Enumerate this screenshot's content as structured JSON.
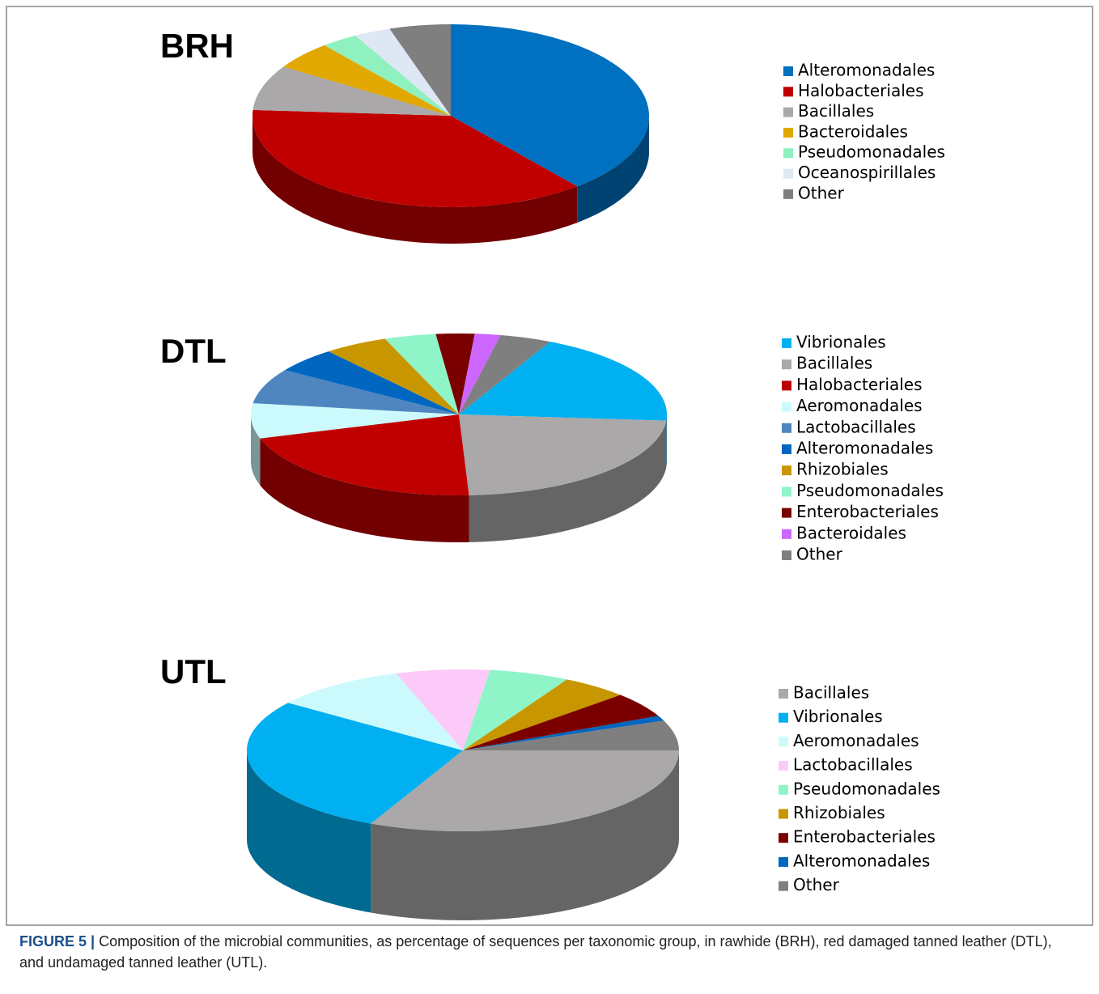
{
  "chart_data": [
    {
      "type": "pie",
      "title": "BRH",
      "categories": [
        "Alteromonadales",
        "Halobacteriales",
        "Bacillales",
        "Bacteroidales",
        "Pseudomonadales",
        "Oceanospirillales",
        "Other"
      ],
      "values": [
        39,
        37,
        8,
        5,
        3,
        3,
        5
      ],
      "colors": [
        "#0070c0",
        "#c00000",
        "#aaa8a8",
        "#e0a800",
        "#8ff0c0",
        "#dde8f4",
        "#7f7f7f"
      ]
    },
    {
      "type": "pie",
      "title": "DTL",
      "categories": [
        "Vibrionales",
        "Bacillales",
        "Halobacteriales",
        "Aeromonadales",
        "Lactobacillales",
        "Alteromonadales",
        "Rhizobiales",
        "Pseudomonadales",
        "Enterobacteriales",
        "Bacteroidales",
        "Other"
      ],
      "values": [
        19,
        23,
        21,
        7,
        7,
        5,
        5,
        4,
        3,
        2,
        4
      ],
      "colors": [
        "#00b0f0",
        "#aaa8a8",
        "#c00000",
        "#ccfafc",
        "#4f86c0",
        "#0066c0",
        "#c89600",
        "#8ff5c8",
        "#7a0000",
        "#cc66ff",
        "#7f7f7f"
      ]
    },
    {
      "type": "pie",
      "title": "UTL",
      "categories": [
        "Bacillales",
        "Vibrionales",
        "Aeromonadales",
        "Lactobacillales",
        "Pseudomonadales",
        "Rhizobiales",
        "Enterobacteriales",
        "Alteromonadales",
        "Other"
      ],
      "values": [
        32,
        28,
        10,
        7,
        6,
        5,
        5,
        1,
        6
      ],
      "colors": [
        "#aaa8a8",
        "#00b0f0",
        "#ccfafc",
        "#fccaf8",
        "#8ff5c8",
        "#c89600",
        "#7a0000",
        "#0066c0",
        "#7f7f7f"
      ]
    }
  ],
  "caption": {
    "label": "FIGURE 5 |",
    "text": "Composition of the microbial communities, as percentage of sequences per taxonomic group, in rawhide (BRH), red damaged tanned leather (DTL), and undamaged tanned leather (UTL)."
  }
}
